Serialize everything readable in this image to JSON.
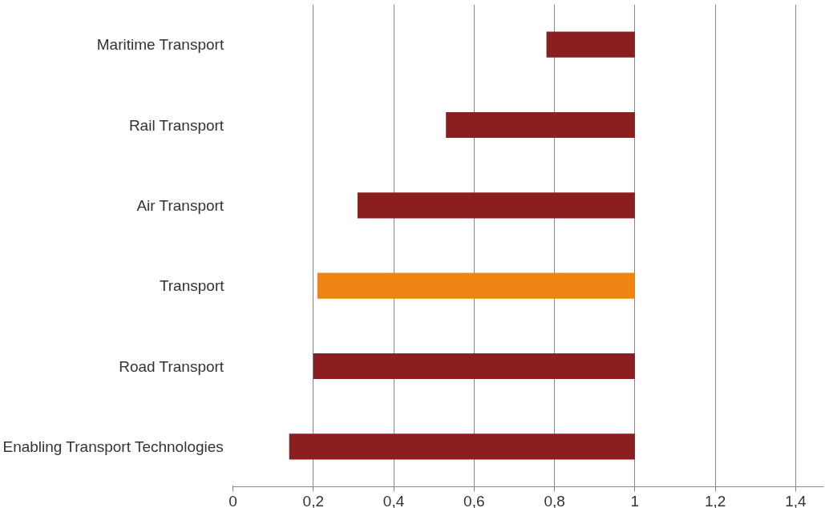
{
  "chart_data": {
    "type": "bar",
    "orientation": "horizontal",
    "categories": [
      "Maritime Transport",
      "Rail Transport",
      "Air Transport",
      "Transport",
      "Road Transport",
      "Enabling Transport Technologies"
    ],
    "base": [
      0.78,
      0.53,
      0.31,
      0.21,
      0.2,
      0.14
    ],
    "values": [
      0.22,
      0.47,
      0.69,
      0.79,
      0.8,
      0.86
    ],
    "colors": [
      "#8b1f1f",
      "#8b1f1f",
      "#8b1f1f",
      "#ee8412",
      "#8b1f1f",
      "#8b1f1f"
    ],
    "xlim": [
      0,
      1.47
    ],
    "xticks": [
      0,
      {
        "value": 0.2,
        "label": "0,2"
      },
      {
        "value": 0.4,
        "label": "0,4"
      },
      {
        "value": 0.6,
        "label": "0,6"
      },
      {
        "value": 0.8,
        "label": "0,8"
      },
      1,
      {
        "value": 1.2,
        "label": "1,2"
      },
      {
        "value": 1.4,
        "label": "1,4"
      }
    ],
    "grid": "x"
  }
}
